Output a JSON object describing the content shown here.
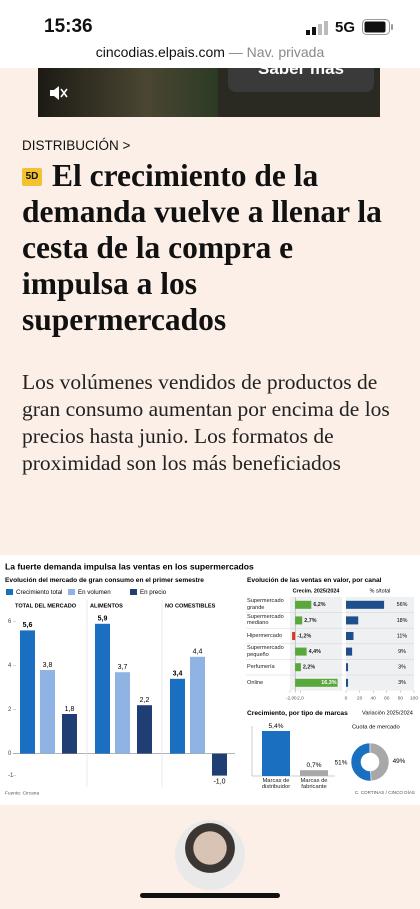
{
  "status_bar": {
    "time": "15:36",
    "network": "5G"
  },
  "browser": {
    "url": "cincodias.elpais.com",
    "mode": "— Nav. privada"
  },
  "ad": {
    "button": "Saber más"
  },
  "article": {
    "section": "DISTRIBUCIÓN >",
    "badge": "5D",
    "title": "El crecimiento de la demanda vuelve a llenar la cesta de la compra e impulsa a los supermercados",
    "subtitle": "Los volúmenes vendidos de productos de gran consumo aumentan por encima de los precios hasta junio. Los formatos de proximidad son los más beneficiados"
  },
  "infographic": {
    "title": "La fuerte demanda impulsa las ventas en los supermercados",
    "market_chart": {
      "type": "bar",
      "title": "Evolución del mercado de gran consumo en el primer semestre",
      "categories": [
        "TOTAL DEL MERCADO",
        "ALIMENTOS",
        "NO COMESTIBLES"
      ],
      "series": [
        {
          "name": "Crecimiento total",
          "color": "#1a6fc0",
          "values": [
            5.6,
            5.9,
            3.4
          ],
          "value_labels": [
            "5,6",
            "5,9",
            "3,4"
          ]
        },
        {
          "name": "En volumen",
          "color": "#8fb4e3",
          "values": [
            3.8,
            3.7,
            4.4
          ],
          "value_labels": [
            "3,8",
            "3,7",
            "4,4"
          ]
        },
        {
          "name": "En precio",
          "color": "#1f3f74",
          "values": [
            1.8,
            2.2,
            -1.0
          ],
          "value_labels": [
            "1,8",
            "2,2",
            "-1,0"
          ]
        }
      ],
      "ylim": [
        -1.2,
        6.3
      ],
      "yticks": [
        6,
        4,
        2,
        0,
        -1
      ],
      "source": "Fuente: Circana"
    },
    "channel_chart": {
      "type": "hbar",
      "title": "Evolución de las ventas en valor, por canal",
      "categories": [
        "Supermercado grande",
        "Supermercado mediano",
        "Hipermercado",
        "Supermercado pequeño",
        "Perfumería",
        "Online"
      ],
      "growth": {
        "name": "Crecim. 2025/2024",
        "values": [
          6.2,
          2.7,
          -1.2,
          4.4,
          2.2,
          16.3
        ],
        "value_labels": [
          "6,2%",
          "2,7%",
          "-1,2%",
          "4,4%",
          "2,2%",
          "16,3%"
        ],
        "color": "#5aa83c",
        "negative_color": "#d9352b",
        "xlim": [
          -2,
          18
        ],
        "xticks": [
          {
            "value": -2,
            "label": "-2,0"
          },
          0,
          {
            "value": 2,
            "label": "2,0"
          }
        ]
      },
      "share": {
        "name": "% s/total",
        "values": [
          56,
          18,
          11,
          9,
          3,
          3
        ],
        "value_labels": [
          "56%",
          "18%",
          "11%",
          "9%",
          "3%",
          "3%"
        ],
        "color": "#1f4e8c",
        "xlim": [
          0,
          100
        ],
        "xticks": [
          0,
          20,
          40,
          60,
          80,
          100
        ]
      }
    },
    "brands_chart": {
      "type": "bar",
      "title": "Crecimiento, por tipo de marcas",
      "subtitle": "Variación 2025/2024",
      "categories": [
        "Marcas de distribuidor",
        "Marcas de fabricante"
      ],
      "values": [
        5.4,
        0.7
      ],
      "value_labels": [
        "5,4%",
        "0,7%"
      ],
      "colors": [
        "#1a6fc0",
        "#a8a8a8"
      ],
      "ylim": [
        0,
        6
      ]
    },
    "share_chart": {
      "type": "pie",
      "title": "Cuota de mercado",
      "values": [
        51,
        49
      ],
      "value_labels": [
        "51%",
        "49%"
      ],
      "colors": [
        "#1a6fc0",
        "#a8a8a8"
      ]
    },
    "credit": "C. CORTINAS / CINCO DÍAS"
  }
}
